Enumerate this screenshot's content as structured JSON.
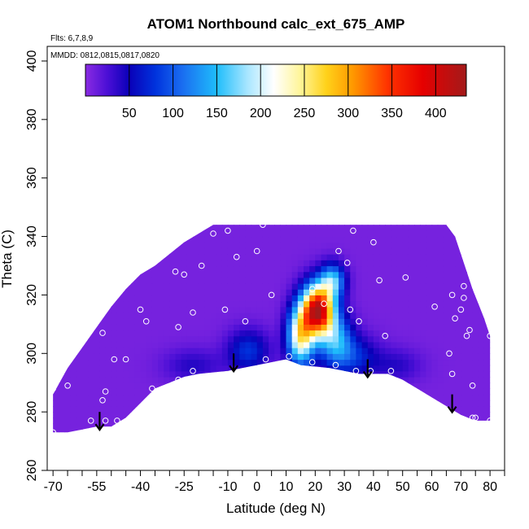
{
  "chart_data": {
    "type": "heatmap",
    "title": "ATOM1 Northbound calc_ext_675_AMP",
    "flights_note": "Flts: 6,7,8,9",
    "dates_note": "MMDD: 0812,0815,0817,0820",
    "xlabel": "Latitude (deg N)",
    "ylabel": "Theta (C)",
    "xlim": [
      -72,
      85
    ],
    "ylim": [
      260,
      405
    ],
    "x_ticks": [
      -70,
      -55,
      -40,
      -25,
      -10,
      0,
      10,
      20,
      30,
      40,
      50,
      60,
      70,
      80
    ],
    "x_tick_labels": [
      "-70",
      "-55",
      "-40",
      "-25",
      "-10",
      "0",
      "10",
      "20",
      "30",
      "40",
      "50",
      "60",
      "70",
      "80"
    ],
    "x_minor_ticks": [
      -65,
      -60,
      -50,
      -45,
      -35,
      -30,
      -20,
      -15,
      -5,
      5,
      15,
      25,
      35,
      45,
      55,
      65,
      75,
      85
    ],
    "y_ticks": [
      260,
      280,
      300,
      320,
      340,
      360,
      380,
      400
    ],
    "y_tick_labels": [
      "260",
      "280",
      "300",
      "320",
      "340",
      "360",
      "380",
      "400"
    ],
    "colorbar": {
      "range": [
        0,
        435
      ],
      "ticks": [
        50,
        100,
        150,
        200,
        250,
        300,
        350,
        400
      ],
      "tick_labels": [
        "50",
        "100",
        "150",
        "200",
        "250",
        "300",
        "350",
        "400"
      ],
      "stops": [
        {
          "v": 0,
          "c": "#8a2be2"
        },
        {
          "v": 25,
          "c": "#4b0fd6"
        },
        {
          "v": 50,
          "c": "#0a00b8"
        },
        {
          "v": 80,
          "c": "#0033dd"
        },
        {
          "v": 110,
          "c": "#1a6cf0"
        },
        {
          "v": 150,
          "c": "#1fbdfb"
        },
        {
          "v": 185,
          "c": "#a8e6ff"
        },
        {
          "v": 215,
          "c": "#ffffff"
        },
        {
          "v": 245,
          "c": "#fff59a"
        },
        {
          "v": 275,
          "c": "#ffd21a"
        },
        {
          "v": 305,
          "c": "#ff9900"
        },
        {
          "v": 345,
          "c": "#ff3300"
        },
        {
          "v": 385,
          "c": "#e60000"
        },
        {
          "v": 435,
          "c": "#a31a1a"
        }
      ]
    },
    "background_value": 8,
    "boundary_top": [
      [
        -70,
        286
      ],
      [
        -65,
        295
      ],
      [
        -60,
        302
      ],
      [
        -55,
        309
      ],
      [
        -50,
        316
      ],
      [
        -45,
        322
      ],
      [
        -40,
        327
      ],
      [
        -35,
        330
      ],
      [
        -30,
        334
      ],
      [
        -25,
        338
      ],
      [
        -20,
        341
      ],
      [
        -15,
        344
      ],
      [
        -10,
        344
      ],
      [
        0,
        344
      ],
      [
        20,
        344
      ],
      [
        40,
        344
      ],
      [
        60,
        344
      ],
      [
        65,
        344
      ],
      [
        68,
        340
      ],
      [
        70,
        334
      ],
      [
        72,
        328
      ],
      [
        74,
        322
      ],
      [
        76,
        317
      ],
      [
        78,
        312
      ],
      [
        80,
        306
      ]
    ],
    "boundary_bottom": [
      [
        -70,
        273
      ],
      [
        -65,
        273
      ],
      [
        -60,
        274
      ],
      [
        -55,
        275
      ],
      [
        -50,
        275
      ],
      [
        -45,
        278
      ],
      [
        -40,
        283
      ],
      [
        -35,
        288
      ],
      [
        -30,
        290
      ],
      [
        -25,
        292
      ],
      [
        -20,
        293
      ],
      [
        -10,
        294
      ],
      [
        0,
        296
      ],
      [
        10,
        298
      ],
      [
        15,
        296
      ],
      [
        25,
        295
      ],
      [
        30,
        294
      ],
      [
        35,
        293
      ],
      [
        45,
        293
      ],
      [
        50,
        291
      ],
      [
        55,
        288
      ],
      [
        60,
        285
      ],
      [
        65,
        282
      ],
      [
        70,
        279
      ],
      [
        75,
        277
      ],
      [
        80,
        277
      ]
    ],
    "features": [
      {
        "name": "central-maximum",
        "lat": 21,
        "theta": 315,
        "value": 410,
        "sigma_lat": 3.8,
        "sigma_theta": 6
      },
      {
        "name": "column-base-west",
        "lat": 15,
        "theta": 306,
        "value": 230,
        "sigma_lat": 3.2,
        "sigma_theta": 7
      },
      {
        "name": "column-base-east",
        "lat": 27,
        "theta": 305,
        "value": 120,
        "sigma_lat": 4,
        "sigma_theta": 6
      },
      {
        "name": "column-top",
        "lat": 26,
        "theta": 325,
        "value": 140,
        "sigma_lat": 3,
        "sigma_theta": 4
      },
      {
        "name": "dark-plume-west",
        "lat": -3,
        "theta": 301,
        "value": 70,
        "sigma_lat": 5,
        "sigma_theta": 5
      },
      {
        "name": "dark-plume-east",
        "lat": 33,
        "theta": 299,
        "value": 65,
        "sigma_lat": 6,
        "sigma_theta": 5
      },
      {
        "name": "dark-tail-southwest",
        "lat": -22,
        "theta": 296,
        "value": 32,
        "sigma_lat": 7,
        "sigma_theta": 4
      },
      {
        "name": "dark-tail-north",
        "lat": 48,
        "theta": 296,
        "value": 30,
        "sigma_lat": 6,
        "sigma_theta": 4
      }
    ],
    "samples": [
      {
        "lat": -70,
        "theta": 273
      },
      {
        "lat": -70,
        "theta": 288
      },
      {
        "lat": -65,
        "theta": 289
      },
      {
        "lat": -57,
        "theta": 277
      },
      {
        "lat": -52,
        "theta": 277
      },
      {
        "lat": -48,
        "theta": 277
      },
      {
        "lat": -53,
        "theta": 284
      },
      {
        "lat": -52,
        "theta": 287
      },
      {
        "lat": -49,
        "theta": 298
      },
      {
        "lat": -45,
        "theta": 298
      },
      {
        "lat": -53,
        "theta": 307
      },
      {
        "lat": -38,
        "theta": 311
      },
      {
        "lat": -40,
        "theta": 315
      },
      {
        "lat": -36,
        "theta": 288
      },
      {
        "lat": -27,
        "theta": 291
      },
      {
        "lat": -27,
        "theta": 309
      },
      {
        "lat": -22,
        "theta": 294
      },
      {
        "lat": -22,
        "theta": 314
      },
      {
        "lat": -11,
        "theta": 315
      },
      {
        "lat": -4,
        "theta": 311
      },
      {
        "lat": 3,
        "theta": 298
      },
      {
        "lat": -28,
        "theta": 328
      },
      {
        "lat": -25,
        "theta": 327
      },
      {
        "lat": -19,
        "theta": 330
      },
      {
        "lat": -15,
        "theta": 341
      },
      {
        "lat": -10,
        "theta": 342
      },
      {
        "lat": -7,
        "theta": 333
      },
      {
        "lat": 0,
        "theta": 335
      },
      {
        "lat": 2,
        "theta": 344
      },
      {
        "lat": 5,
        "theta": 320
      },
      {
        "lat": 9,
        "theta": 346
      },
      {
        "lat": 15,
        "theta": 347
      },
      {
        "lat": 21,
        "theta": 346
      },
      {
        "lat": 19,
        "theta": 322
      },
      {
        "lat": 23,
        "theta": 317
      },
      {
        "lat": 28,
        "theta": 335
      },
      {
        "lat": 31,
        "theta": 331
      },
      {
        "lat": 33,
        "theta": 342
      },
      {
        "lat": 40,
        "theta": 338
      },
      {
        "lat": 42,
        "theta": 325
      },
      {
        "lat": 32,
        "theta": 315
      },
      {
        "lat": 35,
        "theta": 311
      },
      {
        "lat": 51,
        "theta": 326
      },
      {
        "lat": 44,
        "theta": 306
      },
      {
        "lat": 11,
        "theta": 299
      },
      {
        "lat": 19,
        "theta": 297
      },
      {
        "lat": 27,
        "theta": 296
      },
      {
        "lat": 34,
        "theta": 294
      },
      {
        "lat": 39,
        "theta": 294
      },
      {
        "lat": 46,
        "theta": 294
      },
      {
        "lat": 61,
        "theta": 316
      },
      {
        "lat": 67,
        "theta": 320
      },
      {
        "lat": 69,
        "theta": 342
      },
      {
        "lat": 70,
        "theta": 315
      },
      {
        "lat": 71,
        "theta": 323
      },
      {
        "lat": 71,
        "theta": 319
      },
      {
        "lat": 66,
        "theta": 300
      },
      {
        "lat": 67,
        "theta": 293
      },
      {
        "lat": 68,
        "theta": 312
      },
      {
        "lat": 72,
        "theta": 306
      },
      {
        "lat": 73,
        "theta": 308
      },
      {
        "lat": 74,
        "theta": 278
      },
      {
        "lat": 75,
        "theta": 278
      },
      {
        "lat": 74,
        "theta": 289
      },
      {
        "lat": 80,
        "theta": 306
      },
      {
        "lat": 80,
        "theta": 277
      }
    ],
    "tropopause_arrows": [
      {
        "lat": -54,
        "theta": 280
      },
      {
        "lat": -8,
        "theta": 300
      },
      {
        "lat": 38,
        "theta": 298
      },
      {
        "lat": 67,
        "theta": 286
      }
    ]
  }
}
